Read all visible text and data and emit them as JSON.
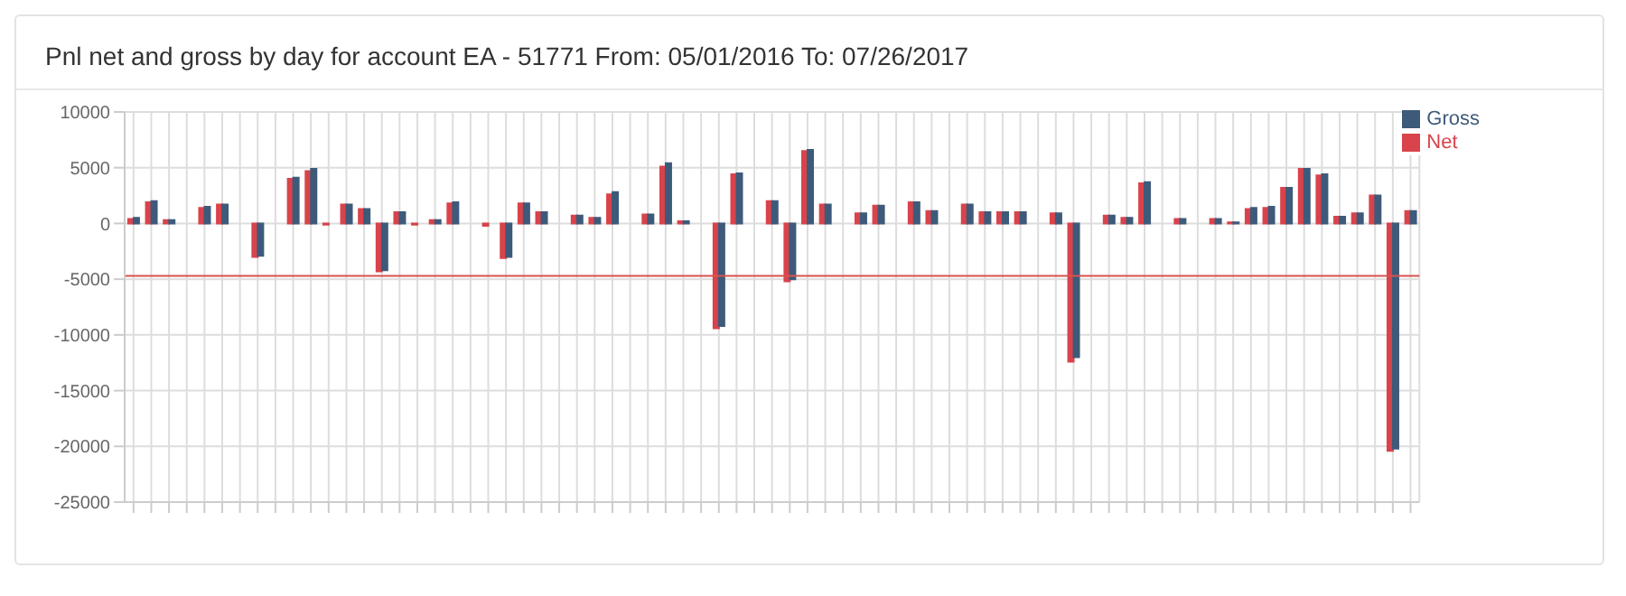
{
  "chart_data": {
    "type": "bar",
    "title": "Pnl net and gross by day for account EA - 51771 From: 05/01/2016 To: 07/26/2017",
    "categories": [
      null,
      null,
      null,
      null,
      null,
      null,
      null,
      null,
      null,
      null,
      null,
      null,
      null,
      null,
      null,
      null,
      null,
      null,
      null,
      null,
      null,
      null,
      null,
      null,
      null,
      null,
      null,
      null,
      null,
      null,
      null,
      null,
      null,
      null,
      null,
      null,
      null,
      null,
      null,
      null,
      null,
      null,
      null,
      null,
      null,
      null,
      null,
      null,
      null,
      null,
      null,
      null,
      null,
      null,
      null,
      null,
      null,
      null,
      null,
      null,
      null,
      null,
      null,
      null,
      null,
      null,
      null,
      null,
      null,
      null,
      null,
      null,
      null
    ],
    "series": [
      {
        "name": "Net",
        "color": "#d9434b",
        "values": [
          400,
          1900,
          300,
          null,
          1400,
          1700,
          0,
          -3000,
          null,
          4000,
          4700,
          -100,
          1700,
          1300,
          -4300,
          1000,
          -100,
          300,
          1800,
          null,
          -200,
          -3100,
          1800,
          1000,
          null,
          700,
          500,
          2600,
          null,
          800,
          5100,
          200,
          null,
          -9400,
          4400,
          null,
          2000,
          -5200,
          6500,
          1700,
          null,
          900,
          1600,
          null,
          1900,
          1100,
          null,
          1700,
          1000,
          1000,
          1000,
          null,
          900,
          -12400,
          null,
          700,
          500,
          3600,
          null,
          400,
          null,
          400,
          100,
          1300,
          1400,
          3200,
          4900,
          4300,
          600,
          900,
          2500,
          -20400,
          1100
        ]
      },
      {
        "name": "Gross",
        "color": "#3e5a7a",
        "values": [
          500,
          2000,
          300,
          null,
          1500,
          1700,
          0,
          -2900,
          null,
          4100,
          4900,
          0,
          1700,
          1300,
          -4200,
          1000,
          0,
          300,
          1900,
          null,
          0,
          -3000,
          1800,
          1000,
          null,
          700,
          500,
          2800,
          null,
          800,
          5400,
          200,
          null,
          -9200,
          4500,
          null,
          2000,
          -5000,
          6600,
          1700,
          null,
          900,
          1600,
          null,
          1900,
          1100,
          null,
          1700,
          1000,
          1000,
          1000,
          null,
          900,
          -12000,
          null,
          700,
          500,
          3700,
          null,
          400,
          null,
          400,
          100,
          1400,
          1500,
          3200,
          4900,
          4400,
          600,
          900,
          2500,
          -20200,
          1100
        ]
      }
    ],
    "ylim": [
      -25000,
      10000
    ],
    "yticks": [
      -25000,
      -20000,
      -15000,
      -10000,
      -5000,
      0,
      5000,
      10000
    ],
    "ref_lines": [
      {
        "axis": "y",
        "value": -4700,
        "color": "#d9534f"
      }
    ],
    "grid": true,
    "legend": "top right"
  }
}
